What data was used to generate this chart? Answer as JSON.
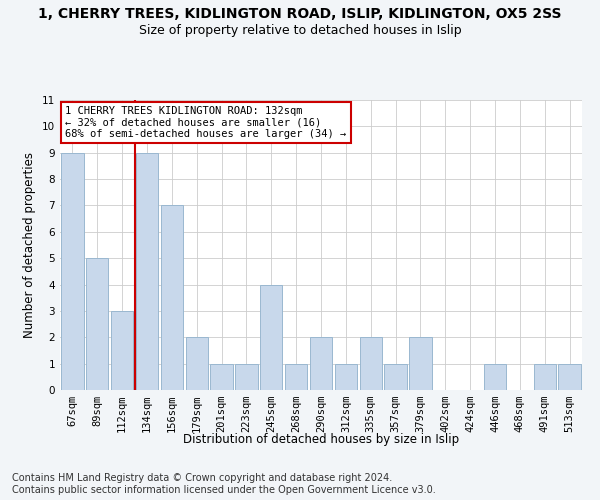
{
  "title": "1, CHERRY TREES, KIDLINGTON ROAD, ISLIP, KIDLINGTON, OX5 2SS",
  "subtitle": "Size of property relative to detached houses in Islip",
  "xlabel": "Distribution of detached houses by size in Islip",
  "ylabel": "Number of detached properties",
  "categories": [
    "67sqm",
    "89sqm",
    "112sqm",
    "134sqm",
    "156sqm",
    "179sqm",
    "201sqm",
    "223sqm",
    "245sqm",
    "268sqm",
    "290sqm",
    "312sqm",
    "335sqm",
    "357sqm",
    "379sqm",
    "402sqm",
    "424sqm",
    "446sqm",
    "468sqm",
    "491sqm",
    "513sqm"
  ],
  "values": [
    9,
    5,
    3,
    9,
    7,
    2,
    1,
    1,
    4,
    1,
    2,
    1,
    2,
    1,
    2,
    0,
    0,
    1,
    0,
    1,
    1
  ],
  "bar_color": "#c8d8eb",
  "bar_edge_color": "#9ab8d0",
  "marker_index": 3,
  "marker_color": "#cc0000",
  "annotation_text": "1 CHERRY TREES KIDLINGTON ROAD: 132sqm\n← 32% of detached houses are smaller (16)\n68% of semi-detached houses are larger (34) →",
  "annotation_box_color": "#ffffff",
  "annotation_box_edge_color": "#cc0000",
  "ylim": [
    0,
    11
  ],
  "yticks": [
    0,
    1,
    2,
    3,
    4,
    5,
    6,
    7,
    8,
    9,
    10,
    11
  ],
  "footnote": "Contains HM Land Registry data © Crown copyright and database right 2024.\nContains public sector information licensed under the Open Government Licence v3.0.",
  "bg_color": "#f2f5f8",
  "plot_bg_color": "#ffffff",
  "grid_color": "#cccccc",
  "title_fontsize": 10,
  "subtitle_fontsize": 9,
  "axis_label_fontsize": 8.5,
  "tick_fontsize": 7.5,
  "annotation_fontsize": 7.5,
  "footnote_fontsize": 7
}
